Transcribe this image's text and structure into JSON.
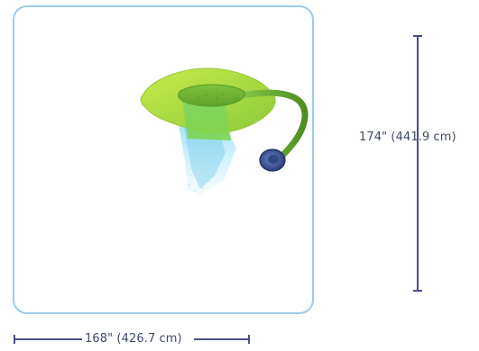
{
  "dimensions": {
    "height_label": "174\" (441.9 cm)",
    "width_label": "168\" (426.7 cm)"
  },
  "product": {
    "icon": "lily-pad-spray-icon",
    "colors": {
      "frame": "#9fcbeb",
      "leaf_light": "#b5df3b",
      "leaf_dark": "#6fb52e",
      "pole": "#6aa839",
      "base": "#2f4a86",
      "water": "#5dc3e8",
      "dimension_line": "#4a4e8f"
    }
  }
}
